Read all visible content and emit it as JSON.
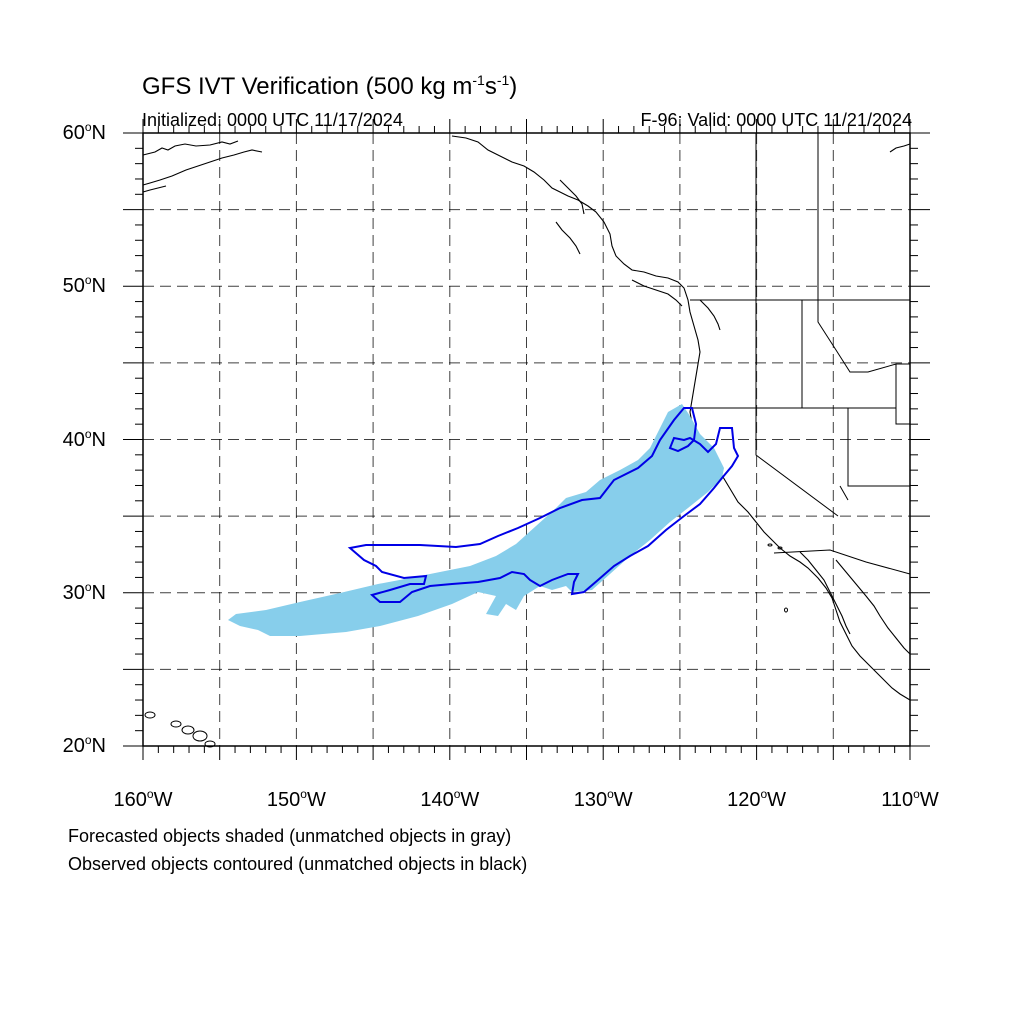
{
  "title": {
    "main": "GFS IVT Verification (500 kg m",
    "sup1": "-1",
    "mid": "s",
    "sup2": "-1",
    "end": ")"
  },
  "subtitle": {
    "left": "Initialized: 0000 UTC 11/17/2024",
    "right": "F-96: Valid: 0000 UTC 11/21/2024"
  },
  "axes": {
    "lat_labels": [
      {
        "text": "60",
        "suffix": "N",
        "lat": 60
      },
      {
        "text": "50",
        "suffix": "N",
        "lat": 50
      },
      {
        "text": "40",
        "suffix": "N",
        "lat": 40
      },
      {
        "text": "30",
        "suffix": "N",
        "lat": 30
      },
      {
        "text": "20",
        "suffix": "N",
        "lat": 20
      }
    ],
    "lon_labels": [
      {
        "text": "160",
        "suffix": "W",
        "lon": -160
      },
      {
        "text": "150",
        "suffix": "W",
        "lon": -150
      },
      {
        "text": "140",
        "suffix": "W",
        "lon": -140
      },
      {
        "text": "130",
        "suffix": "W",
        "lon": -130
      },
      {
        "text": "120",
        "suffix": "W",
        "lon": -120
      },
      {
        "text": "110",
        "suffix": "W",
        "lon": -110
      }
    ],
    "lat_range": [
      20,
      60
    ],
    "lon_range": [
      -160,
      -110
    ],
    "grid_spacing_deg": 5
  },
  "legend": {
    "line1": "Forecasted objects shaded (unmatched objects in gray)",
    "line2": "Observed objects contoured (unmatched objects in black)"
  },
  "colors": {
    "forecast_fill": "#87ceeb",
    "observed_contour": "#0000e6",
    "coastline": "#000000",
    "grid": "#000000"
  }
}
